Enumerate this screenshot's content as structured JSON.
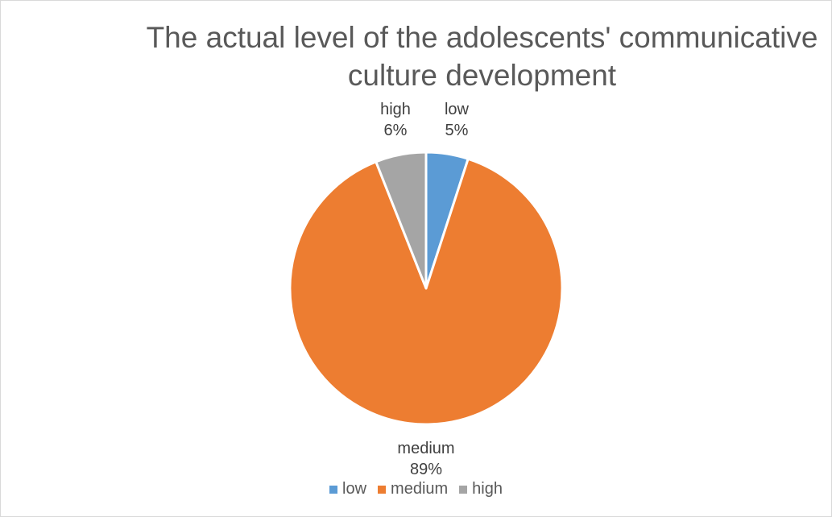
{
  "chart_data": {
    "type": "pie",
    "title": "The actual level of the adolescents' communicative culture development",
    "categories": [
      "low",
      "medium",
      "high"
    ],
    "values": [
      5,
      89,
      6
    ],
    "value_labels": [
      "5%",
      "89%",
      "6%"
    ],
    "colors": [
      "#5B9BD5",
      "#ED7D31",
      "#A5A5A5"
    ],
    "legend_position": "bottom"
  }
}
